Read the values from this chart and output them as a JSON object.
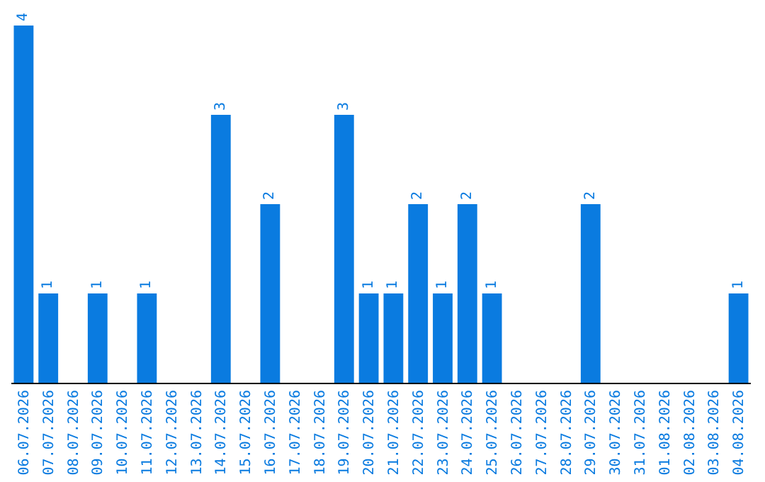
{
  "chart_data": {
    "type": "bar",
    "categories": [
      "06.07.2026",
      "07.07.2026",
      "08.07.2026",
      "09.07.2026",
      "10.07.2026",
      "11.07.2026",
      "12.07.2026",
      "13.07.2026",
      "14.07.2026",
      "15.07.2026",
      "16.07.2026",
      "17.07.2026",
      "18.07.2026",
      "19.07.2026",
      "20.07.2026",
      "21.07.2026",
      "22.07.2026",
      "23.07.2026",
      "24.07.2026",
      "25.07.2026",
      "26.07.2026",
      "27.07.2026",
      "28.07.2026",
      "29.07.2026",
      "30.07.2026",
      "31.07.2026",
      "01.08.2026",
      "02.08.2026",
      "03.08.2026",
      "04.08.2026"
    ],
    "values": [
      4,
      1,
      0,
      1,
      0,
      1,
      0,
      0,
      3,
      0,
      2,
      0,
      0,
      3,
      1,
      1,
      2,
      1,
      2,
      1,
      0,
      0,
      0,
      2,
      0,
      0,
      0,
      0,
      0,
      1
    ],
    "value_labels": [
      "4",
      "1",
      null,
      "1",
      null,
      "1",
      null,
      null,
      "3",
      null,
      "2",
      null,
      null,
      "3",
      "1",
      "1",
      "2",
      "1",
      "2",
      "1",
      null,
      null,
      null,
      "2",
      null,
      null,
      null,
      null,
      null,
      "1"
    ],
    "color": "#0a7be0",
    "ylim": [
      0,
      4
    ],
    "tick_labels": "x",
    "grid": false,
    "legend": false
  }
}
